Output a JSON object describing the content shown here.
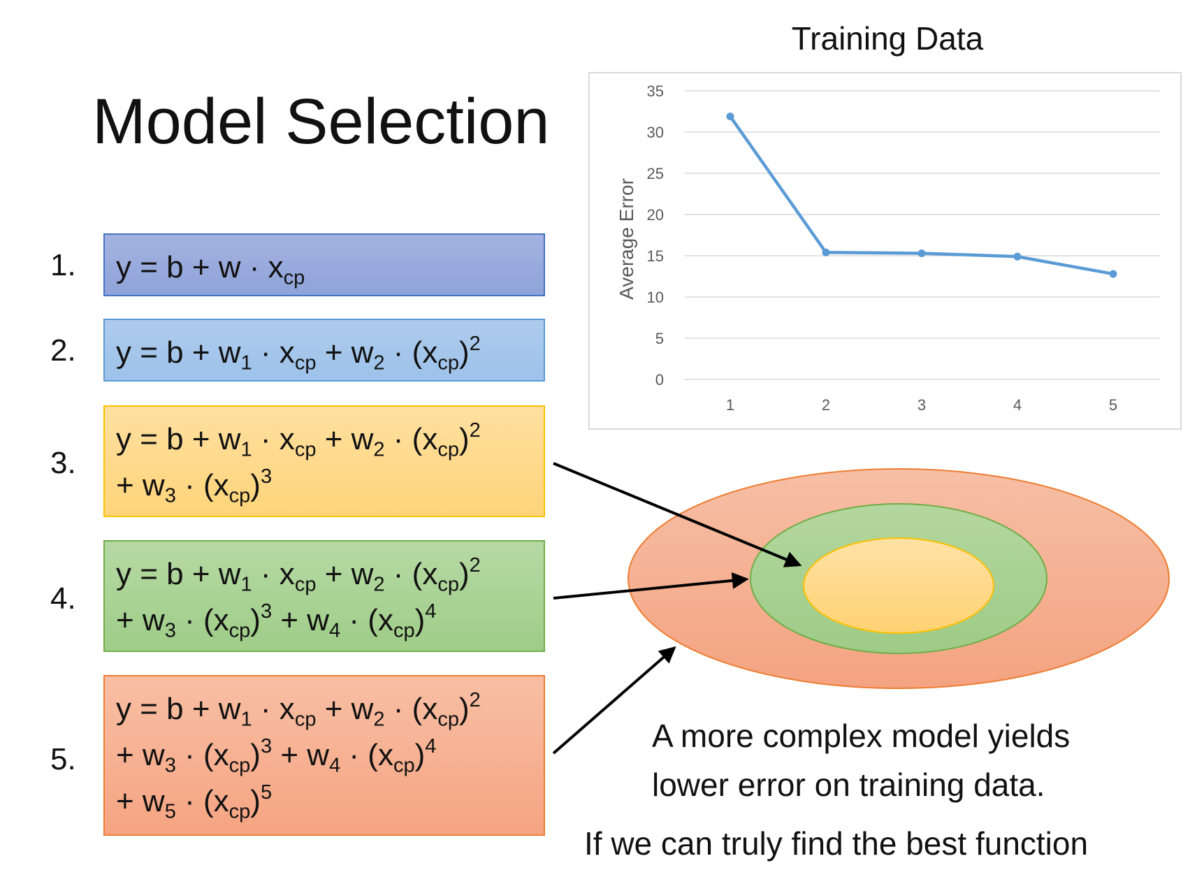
{
  "title": "Model Selection",
  "models": [
    {
      "number": "1.",
      "lines": [
        [
          [
            "t",
            "y = b + w · x"
          ],
          [
            "sub",
            "cp"
          ]
        ]
      ]
    },
    {
      "number": "2.",
      "lines": [
        [
          [
            "t",
            "y = b + w"
          ],
          [
            "sub",
            "1"
          ],
          [
            "t",
            " · x"
          ],
          [
            "sub",
            "cp"
          ],
          [
            "t",
            " + w"
          ],
          [
            "sub",
            "2"
          ],
          [
            "t",
            " · (x"
          ],
          [
            "sub",
            "cp"
          ],
          [
            "t",
            ")"
          ],
          [
            "sup",
            "2"
          ]
        ]
      ]
    },
    {
      "number": "3.",
      "lines": [
        [
          [
            "t",
            "y = b + w"
          ],
          [
            "sub",
            "1"
          ],
          [
            "t",
            " · x"
          ],
          [
            "sub",
            "cp"
          ],
          [
            "t",
            " + w"
          ],
          [
            "sub",
            "2"
          ],
          [
            "t",
            " · (x"
          ],
          [
            "sub",
            "cp"
          ],
          [
            "t",
            ")"
          ],
          [
            "sup",
            "2"
          ]
        ],
        [
          [
            "t",
            "+ w"
          ],
          [
            "sub",
            "3"
          ],
          [
            "t",
            " · (x"
          ],
          [
            "sub",
            "cp"
          ],
          [
            "t",
            ")"
          ],
          [
            "sup",
            "3"
          ]
        ]
      ]
    },
    {
      "number": "4.",
      "lines": [
        [
          [
            "t",
            "y = b + w"
          ],
          [
            "sub",
            "1"
          ],
          [
            "t",
            " · x"
          ],
          [
            "sub",
            "cp"
          ],
          [
            "t",
            " + w"
          ],
          [
            "sub",
            "2"
          ],
          [
            "t",
            " · (x"
          ],
          [
            "sub",
            "cp"
          ],
          [
            "t",
            ")"
          ],
          [
            "sup",
            "2"
          ]
        ],
        [
          [
            "t",
            "+ w"
          ],
          [
            "sub",
            "3"
          ],
          [
            "t",
            " · (x"
          ],
          [
            "sub",
            "cp"
          ],
          [
            "t",
            ")"
          ],
          [
            "sup",
            "3"
          ],
          [
            "t",
            " + w"
          ],
          [
            "sub",
            "4"
          ],
          [
            "t",
            " · (x"
          ],
          [
            "sub",
            "cp"
          ],
          [
            "t",
            ")"
          ],
          [
            "sup",
            "4"
          ]
        ]
      ]
    },
    {
      "number": "5.",
      "lines": [
        [
          [
            "t",
            "y = b + w"
          ],
          [
            "sub",
            "1"
          ],
          [
            "t",
            " · x"
          ],
          [
            "sub",
            "cp"
          ],
          [
            "t",
            " + w"
          ],
          [
            "sub",
            "2"
          ],
          [
            "t",
            " · (x"
          ],
          [
            "sub",
            "cp"
          ],
          [
            "t",
            ")"
          ],
          [
            "sup",
            "2"
          ]
        ],
        [
          [
            "t",
            "+ w"
          ],
          [
            "sub",
            "3"
          ],
          [
            "t",
            " · (x"
          ],
          [
            "sub",
            "cp"
          ],
          [
            "t",
            ")"
          ],
          [
            "sup",
            "3"
          ],
          [
            "t",
            " + w"
          ],
          [
            "sub",
            "4"
          ],
          [
            "t",
            " · (x"
          ],
          [
            "sub",
            "cp"
          ],
          [
            "t",
            ")"
          ],
          [
            "sup",
            "4"
          ]
        ],
        [
          [
            "t",
            "+ w"
          ],
          [
            "sub",
            "5"
          ],
          [
            "t",
            " · (x"
          ],
          [
            "sub",
            "cp"
          ],
          [
            "t",
            ")"
          ],
          [
            "sup",
            "5"
          ]
        ]
      ]
    }
  ],
  "colors": {
    "model1": [
      "#a4b3e0",
      "#8ea3d9",
      "#4472c4"
    ],
    "model2": [
      "#aecbec",
      "#9dc2ea",
      "#5b9bd5"
    ],
    "model3": [
      "#ffe0a0",
      "#ffd47a",
      "#ffc000"
    ],
    "model4": [
      "#b6d9a4",
      "#9fcd88",
      "#70ad47"
    ],
    "model5": [
      "#f8bfa4",
      "#f5a482",
      "#ed7d31"
    ],
    "line": "#5b9bd5"
  },
  "chart_data": {
    "type": "line",
    "title": "Training Data",
    "ylabel": "Average Error",
    "xlabel": "",
    "x": [
      1,
      2,
      3,
      4,
      5
    ],
    "values": [
      31.9,
      15.4,
      15.3,
      14.9,
      12.8
    ],
    "ylim": [
      0,
      35
    ],
    "yticks": [
      0,
      5,
      10,
      15,
      20,
      25,
      30,
      35
    ],
    "xticks": [
      1,
      2,
      3,
      4,
      5
    ],
    "grid": true
  },
  "captions": {
    "line1": "A more complex model yields",
    "line2": "lower error on training data.",
    "line3": "If we can truly find the best function"
  }
}
